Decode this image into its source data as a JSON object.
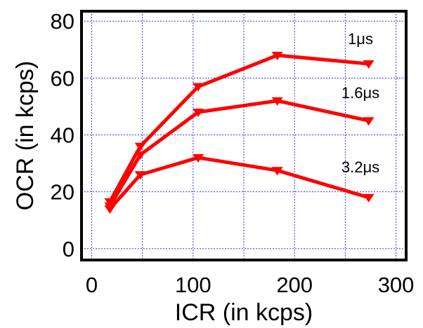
{
  "chart_data": {
    "type": "line",
    "xlabel": "ICR (in kcps)",
    "ylabel": "OCR (in kcps)",
    "xlim": [
      -10,
      310
    ],
    "ylim": [
      -4,
      83.5
    ],
    "x_ticks": [
      0,
      100,
      200,
      300
    ],
    "y_ticks": [
      0,
      20,
      40,
      60,
      80
    ],
    "x_tick_labels": [
      "0",
      "100",
      "200",
      "300"
    ],
    "y_tick_labels": [
      "0",
      "20",
      "40",
      "60",
      "80"
    ],
    "grid": true,
    "line_color": "#ff0000",
    "grid_color": "#3333ff",
    "marker": "triangle-down",
    "x": [
      18,
      48,
      105,
      183,
      273
    ],
    "series": [
      {
        "name": "1μs",
        "values": [
          16.5,
          36,
          57,
          68,
          65
        ]
      },
      {
        "name": "1.6μs",
        "values": [
          15,
          33,
          48,
          52,
          45
        ]
      },
      {
        "name": "3.2μs",
        "values": [
          14,
          26,
          32,
          27.5,
          18
        ]
      }
    ]
  }
}
